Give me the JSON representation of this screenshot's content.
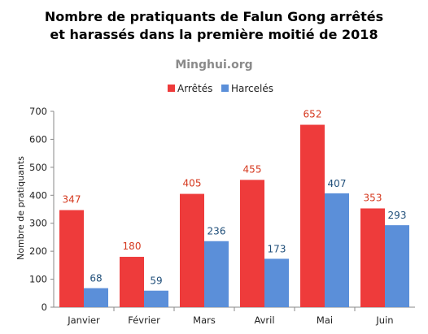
{
  "chart_data": {
    "type": "bar",
    "title_line1": "Nombre de pratiquants de Falun Gong arrêtés",
    "title_line2": "et harassés dans la première moitié  de 2018",
    "watermark": "Minghui.org",
    "ylabel": "Nombre de pratiquants",
    "ylim": [
      0,
      700
    ],
    "yticks": [
      0,
      100,
      200,
      300,
      400,
      500,
      600,
      700
    ],
    "categories": [
      "Janvier",
      "Février",
      "Mars",
      "Avril",
      "Mai",
      "Juin"
    ],
    "series": [
      {
        "name": "Arrêtés",
        "color": "#ee3b3b",
        "label_color": "#d5381e",
        "values": [
          347,
          180,
          405,
          455,
          652,
          353
        ]
      },
      {
        "name": "Harcelés",
        "color": "#5b8fd9",
        "label_color": "#1f4e79",
        "values": [
          68,
          59,
          236,
          173,
          407,
          293
        ]
      }
    ],
    "legend_position": "top-center",
    "grid": false
  }
}
